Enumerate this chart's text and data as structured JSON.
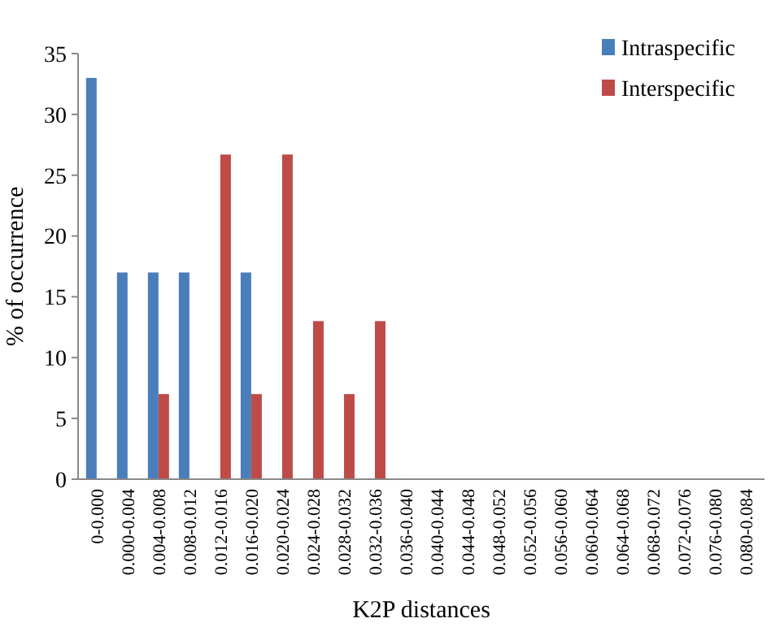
{
  "chart_data": {
    "type": "bar",
    "xlabel": "K2P distances",
    "ylabel": "% of occurrence",
    "categories": [
      "0-0.000",
      "0.000-0.004",
      "0.004-0.008",
      "0.008-0.012",
      "0.012-0.016",
      "0.016-0.020",
      "0.020-0.024",
      "0.024-0.028",
      "0.028-0.032",
      "0.032-0.036",
      "0.036-0.040",
      "0.040-0.044",
      "0.044-0.048",
      "0.048-0.052",
      "0.052-0.056",
      "0.056-0.060",
      "0.060-0.064",
      "0.064-0.068",
      "0.068-0.072",
      "0.072-0.076",
      "0.076-0.080",
      "0.080-0.084"
    ],
    "series": [
      {
        "name": "Intraspecific",
        "color": "#4a7ebb",
        "values": [
          33,
          17,
          17,
          17,
          0,
          17,
          0,
          0,
          0,
          0,
          0,
          0,
          0,
          0,
          0,
          0,
          0,
          0,
          0,
          0,
          0,
          0
        ]
      },
      {
        "name": "Interspecific",
        "color": "#be4b48",
        "values": [
          0,
          0,
          7,
          0,
          26.7,
          7,
          26.7,
          13,
          7,
          13,
          0,
          0,
          0,
          0,
          0,
          0,
          0,
          0,
          0,
          0,
          0,
          0
        ]
      }
    ],
    "ylim": [
      0,
      35
    ],
    "yticks": [
      0,
      5,
      10,
      15,
      20,
      25,
      30,
      35
    ],
    "grid": false,
    "legend": "top right"
  }
}
